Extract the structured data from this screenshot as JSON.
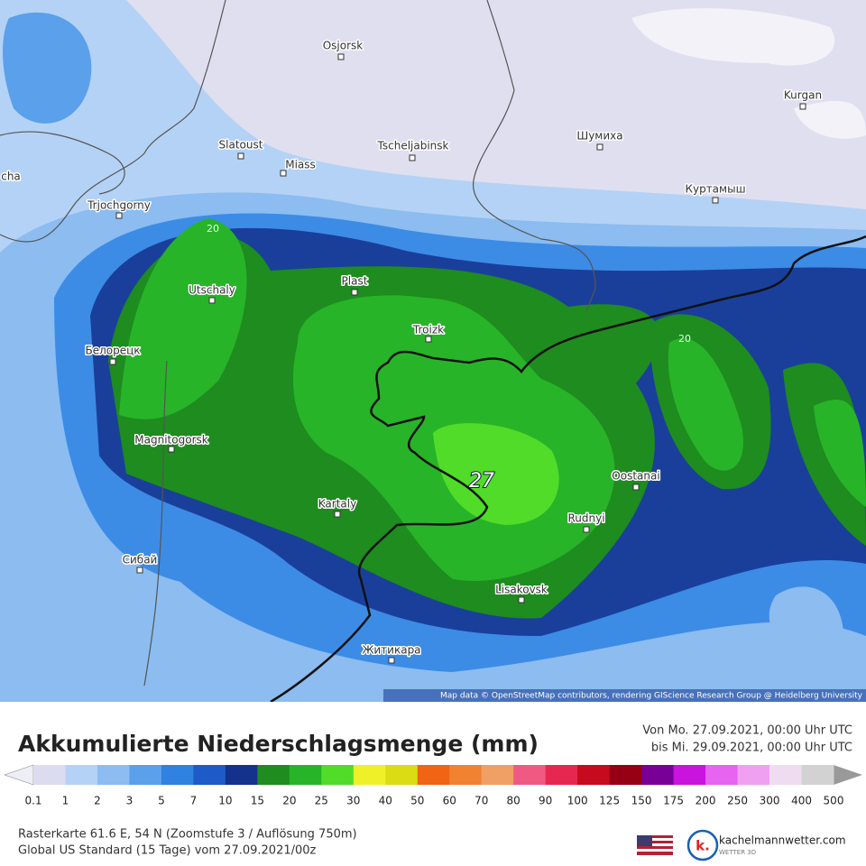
{
  "map": {
    "cities": [
      "Osjorsk",
      "Kurgan",
      "Slatoust",
      "Miass",
      "Tscheljabinsk",
      "Шумиха",
      "Куртамыш",
      "Trjochgorny",
      "cha",
      "Utschaly",
      "Plast",
      "Troizk",
      "Белорецк",
      "Magnitogorsk",
      "Kartaly",
      "Oostanai",
      "Rudnyi",
      "Сибай",
      "Lisakovsk",
      "Житикара"
    ],
    "contour_labels": [
      "20",
      "20",
      "27"
    ],
    "attribution": "Map data © OpenStreetMap contributors, rendering GIScience Research Group @ Heidelberg University"
  },
  "legend": {
    "title": "Akkumulierte Niederschlagsmenge (mm)",
    "period": [
      "Von Mo. 27.09.2021, 00:00 Uhr UTC",
      "bis Mi. 29.09.2021, 00:00 Uhr UTC"
    ],
    "labels": [
      "0.1",
      "1",
      "2",
      "3",
      "5",
      "7",
      "10",
      "15",
      "20",
      "25",
      "30",
      "40",
      "50",
      "60",
      "70",
      "80",
      "90",
      "100",
      "125",
      "150",
      "175",
      "200",
      "250",
      "300",
      "400",
      "500"
    ],
    "colors": [
      "#dcdcf0",
      "#b4d2f5",
      "#8cbcf0",
      "#5aa0eb",
      "#2f82e0",
      "#1e5ac8",
      "#14328c",
      "#1e8c1e",
      "#28b428",
      "#50dc28",
      "#f0f028",
      "#dcdc14",
      "#f06414",
      "#f08232",
      "#f0a064",
      "#f05a82",
      "#e62850",
      "#c80a1e",
      "#960014",
      "#780096",
      "#c814dc",
      "#e664f0",
      "#f0a0f0",
      "#f0dcf0",
      "#d2d2d2"
    ]
  },
  "footer": {
    "lines": [
      "Rasterkarte 61.6 E, 54 N (Zoomstufe 3 / Auflösung 750m)",
      "Global US Standard (15 Tage) vom 27.09.2021/00z"
    ],
    "logo": "k.",
    "brand": "kachelmannwetter.com",
    "brand_sub": "WETTER 3D"
  }
}
